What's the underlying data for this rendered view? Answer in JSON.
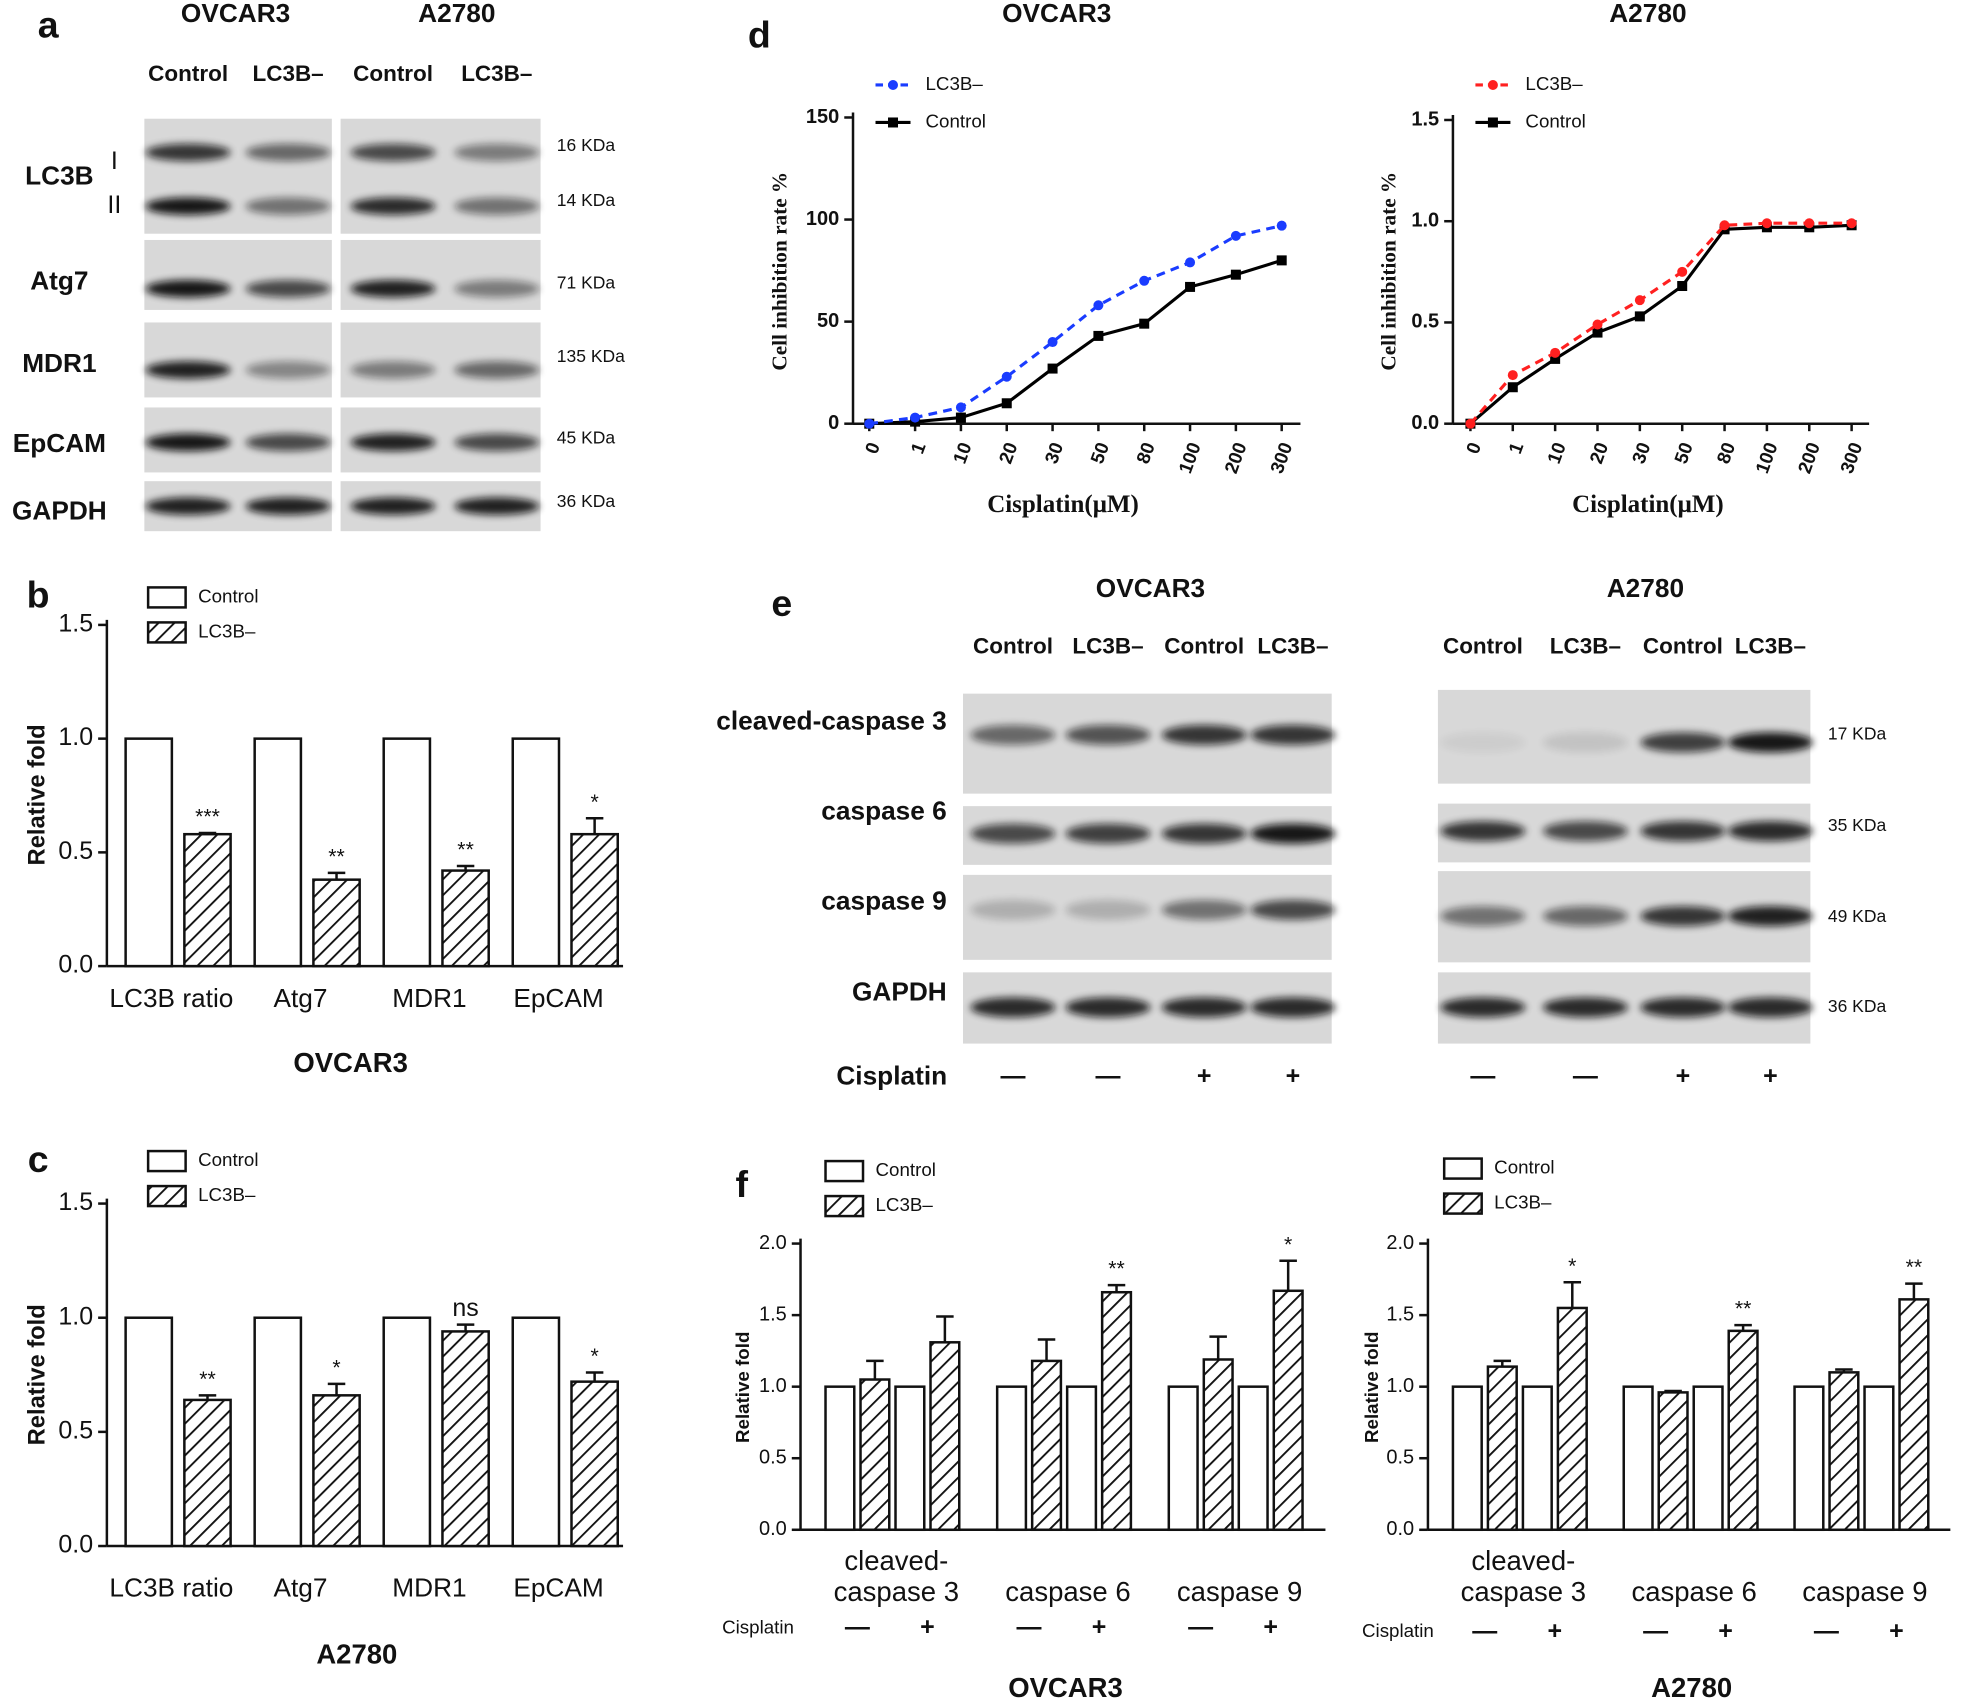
{
  "panel_labels": [
    "a",
    "b",
    "c",
    "d",
    "e",
    "f"
  ],
  "blot_a": {
    "cell_lines": [
      "OVCAR3",
      "A2780"
    ],
    "lanes": [
      "Control",
      "LC3B–",
      "Control",
      "LC3B–"
    ],
    "rows": [
      {
        "label": "LC3B",
        "sublabels": [
          "I",
          "II"
        ],
        "sizes": [
          "16 KDa",
          "14 KDa"
        ]
      },
      {
        "label": "Atg7",
        "sizes": [
          "71 KDa"
        ]
      },
      {
        "label": "MDR1",
        "sizes": [
          "135 KDa"
        ]
      },
      {
        "label": "EpCAM",
        "sizes": [
          "45 KDa"
        ]
      },
      {
        "label": "GAPDH",
        "sizes": [
          "36 KDa"
        ]
      }
    ]
  },
  "blot_e": {
    "cell_lines": [
      "OVCAR3",
      "A2780"
    ],
    "lanes": [
      "Control",
      "LC3B–",
      "Control",
      "LC3B–",
      "Control",
      "LC3B–",
      "Control",
      "LC3B–"
    ],
    "rows": [
      {
        "label": "cleaved-caspase 3",
        "size": "17 KDa"
      },
      {
        "label": "caspase 6",
        "size": "35 KDa"
      },
      {
        "label": "caspase 9",
        "size": "49 KDa"
      },
      {
        "label": "GAPDH",
        "size": "36 KDa"
      }
    ],
    "treatment_label": "Cisplatin",
    "treatment": [
      "—",
      "—",
      "+",
      "+",
      "—",
      "—",
      "+",
      "+"
    ]
  },
  "chart_data": [
    {
      "type": "bar",
      "ylabel": "Relative fold",
      "xlabel": "OVCAR3",
      "categories": [
        "LC3B ratio",
        "Atg7",
        "MDR1",
        "EpCAM"
      ],
      "series": [
        {
          "name": "Control",
          "color": "#ffffff",
          "values": [
            1,
            1,
            1,
            1
          ]
        },
        {
          "name": "LC3B–",
          "color": "#ffffff",
          "pattern": "hatch",
          "values": [
            0.58,
            0.38,
            0.42,
            0.58
          ],
          "errors": [
            0.005,
            0.03,
            0.02,
            0.07
          ],
          "annotations": [
            "***",
            "**",
            "**",
            "*"
          ]
        }
      ],
      "ylim": [
        0,
        1.5
      ],
      "yticks": [
        {
          "value": 0,
          "label": "0.0"
        },
        0.5,
        {
          "value": 1,
          "label": "1.0"
        },
        1.5
      ]
    },
    {
      "type": "bar",
      "ylabel": "Relative fold",
      "xlabel": "A2780",
      "categories": [
        "LC3B ratio",
        "Atg7",
        "MDR1",
        "EpCAM"
      ],
      "series": [
        {
          "name": "Control",
          "color": "#ffffff",
          "values": [
            1,
            1,
            1,
            1
          ]
        },
        {
          "name": "LC3B–",
          "color": "#ffffff",
          "pattern": "hatch",
          "values": [
            0.64,
            0.66,
            0.94,
            0.72
          ],
          "errors": [
            0.02,
            0.05,
            0.03,
            0.04
          ],
          "annotations": [
            "**",
            "*",
            "ns",
            "*"
          ]
        }
      ],
      "ylim": [
        0,
        1.5
      ],
      "yticks": [
        {
          "value": 0,
          "label": "0.0"
        },
        0.5,
        {
          "value": 1,
          "label": "1.0"
        },
        1.5
      ]
    },
    {
      "type": "line",
      "title": "OVCAR3",
      "ylabel": "Cell inhibition rate %",
      "xlabel": "Cisplatin(μM)",
      "categories": [
        "0",
        "1",
        "10",
        "20",
        "30",
        "50",
        "80",
        "100",
        "200",
        "300"
      ],
      "series": [
        {
          "name": "LC3B–",
          "color": "#1a3cff",
          "line_style": "dashed",
          "marker": "circle",
          "values": [
            0,
            3,
            8,
            23,
            40,
            58,
            70,
            79,
            92,
            97
          ]
        },
        {
          "name": "Control",
          "color": "#000000",
          "line_style": "solid",
          "marker": "square",
          "values": [
            0,
            1,
            3,
            10,
            27,
            43,
            49,
            67,
            73,
            80
          ]
        }
      ],
      "ylim": [
        0,
        150
      ],
      "yticks": [
        0,
        50,
        100,
        150
      ]
    },
    {
      "type": "line",
      "title": "A2780",
      "ylabel": "Cell inhibition rate %",
      "xlabel": "Cisplatin(μM)",
      "categories": [
        "0",
        "1",
        "10",
        "20",
        "30",
        "50",
        "80",
        "100",
        "200",
        "300"
      ],
      "series": [
        {
          "name": "LC3B–",
          "color": "#ff2020",
          "line_style": "dashed",
          "marker": "circle",
          "values": [
            0,
            0.24,
            0.35,
            0.49,
            0.61,
            0.75,
            0.98,
            0.99,
            0.99,
            0.99
          ]
        },
        {
          "name": "Control",
          "color": "#000000",
          "line_style": "solid",
          "marker": "square",
          "values": [
            0,
            0.18,
            0.32,
            0.45,
            0.53,
            0.68,
            0.96,
            0.97,
            0.97,
            0.98
          ]
        }
      ],
      "ylim": [
        0,
        1.5
      ],
      "yticks": [
        {
          "value": 0,
          "label": "0.0"
        },
        0.5,
        {
          "value": 1,
          "label": "1.0"
        },
        1.5
      ]
    },
    {
      "type": "bar",
      "ylabel": "Relative fold",
      "xlabel": "OVCAR3",
      "groups": [
        "cleaved-caspase 3",
        "caspase 6",
        "caspase 9"
      ],
      "condition_label": "Cisplatin",
      "conditions": [
        "—",
        "+",
        "—",
        "+",
        "—",
        "+"
      ],
      "series": [
        {
          "name": "Control",
          "color": "#ffffff",
          "values": [
            1,
            1,
            1,
            1,
            1,
            1
          ]
        },
        {
          "name": "LC3B–",
          "color": "#ffffff",
          "pattern": "hatch",
          "values": [
            1.05,
            1.31,
            1.18,
            1.66,
            1.19,
            1.67
          ],
          "errors": [
            0.13,
            0.18,
            0.15,
            0.05,
            0.16,
            0.21
          ],
          "annotations": [
            null,
            null,
            null,
            "**",
            null,
            "*"
          ]
        }
      ],
      "ylim": [
        0,
        2
      ],
      "yticks": [
        {
          "value": 0,
          "label": "0.0"
        },
        0.5,
        {
          "value": 1,
          "label": "1.0"
        },
        1.5,
        {
          "value": 2,
          "label": "2.0"
        }
      ]
    },
    {
      "type": "bar",
      "ylabel": "Relative fold",
      "xlabel": "A2780",
      "groups": [
        "cleaved-caspase 3",
        "caspase 6",
        "caspase 9"
      ],
      "condition_label": "Cisplatin",
      "conditions": [
        "—",
        "+",
        "—",
        "+",
        "—",
        "+"
      ],
      "series": [
        {
          "name": "Control",
          "color": "#ffffff",
          "values": [
            1,
            1,
            1,
            1,
            1,
            1
          ]
        },
        {
          "name": "LC3B–",
          "color": "#ffffff",
          "pattern": "hatch",
          "values": [
            1.14,
            1.55,
            0.96,
            1.39,
            1.1,
            1.61
          ],
          "errors": [
            0.04,
            0.18,
            0.01,
            0.04,
            0.02,
            0.11
          ],
          "annotations": [
            null,
            "*",
            null,
            "**",
            null,
            "**"
          ]
        }
      ],
      "ylim": [
        0,
        2
      ],
      "yticks": [
        {
          "value": 0,
          "label": "0.0"
        },
        0.5,
        {
          "value": 1,
          "label": "1.0"
        },
        1.5,
        {
          "value": 2,
          "label": "2.0"
        }
      ]
    }
  ]
}
